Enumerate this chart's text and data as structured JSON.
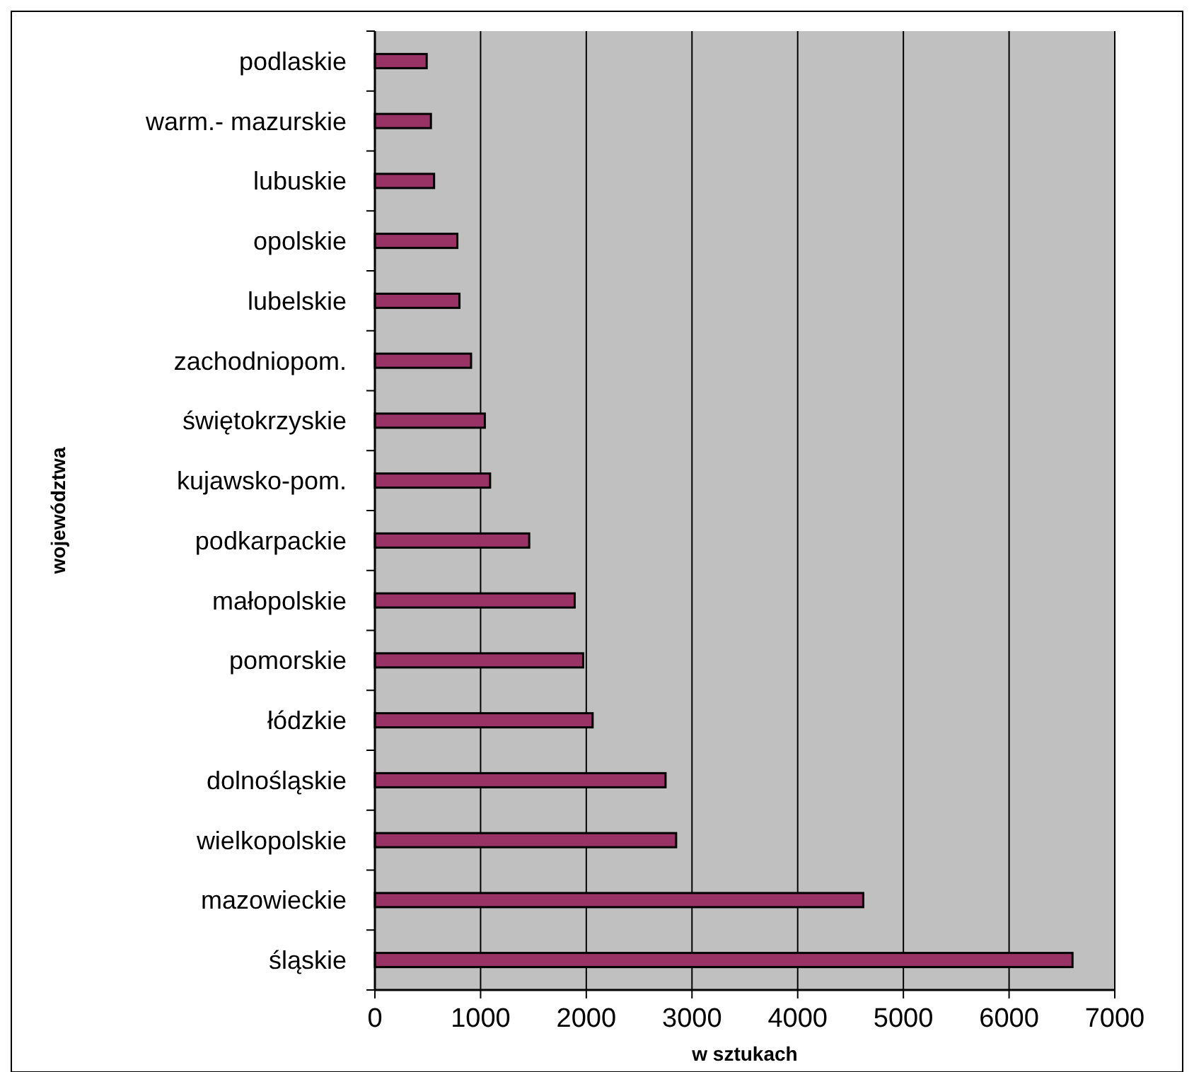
{
  "chart_data": {
    "type": "bar",
    "orientation": "horizontal",
    "xlabel": "w sztukach",
    "ylabel": "województwa",
    "categories": [
      "podlaskie",
      "warm.- mazurskie",
      "lubuskie",
      "opolskie",
      "lubelskie",
      "zachodniopom.",
      "świętokrzyskie",
      "kujawsko-pom.",
      "podkarpackie",
      "małopolskie",
      "pomorskie",
      "łódzkie",
      "dolnośląskie",
      "wielkopolskie",
      "mazowieckie",
      "śląskie"
    ],
    "values": [
      490,
      530,
      560,
      780,
      800,
      910,
      1040,
      1090,
      1460,
      1890,
      1970,
      2060,
      2750,
      2850,
      4620,
      6600
    ],
    "color": "#993366",
    "xlim": [
      0,
      7000
    ],
    "xticks": [
      0,
      1000,
      2000,
      3000,
      4000,
      5000,
      6000,
      7000
    ],
    "grid": "x"
  }
}
